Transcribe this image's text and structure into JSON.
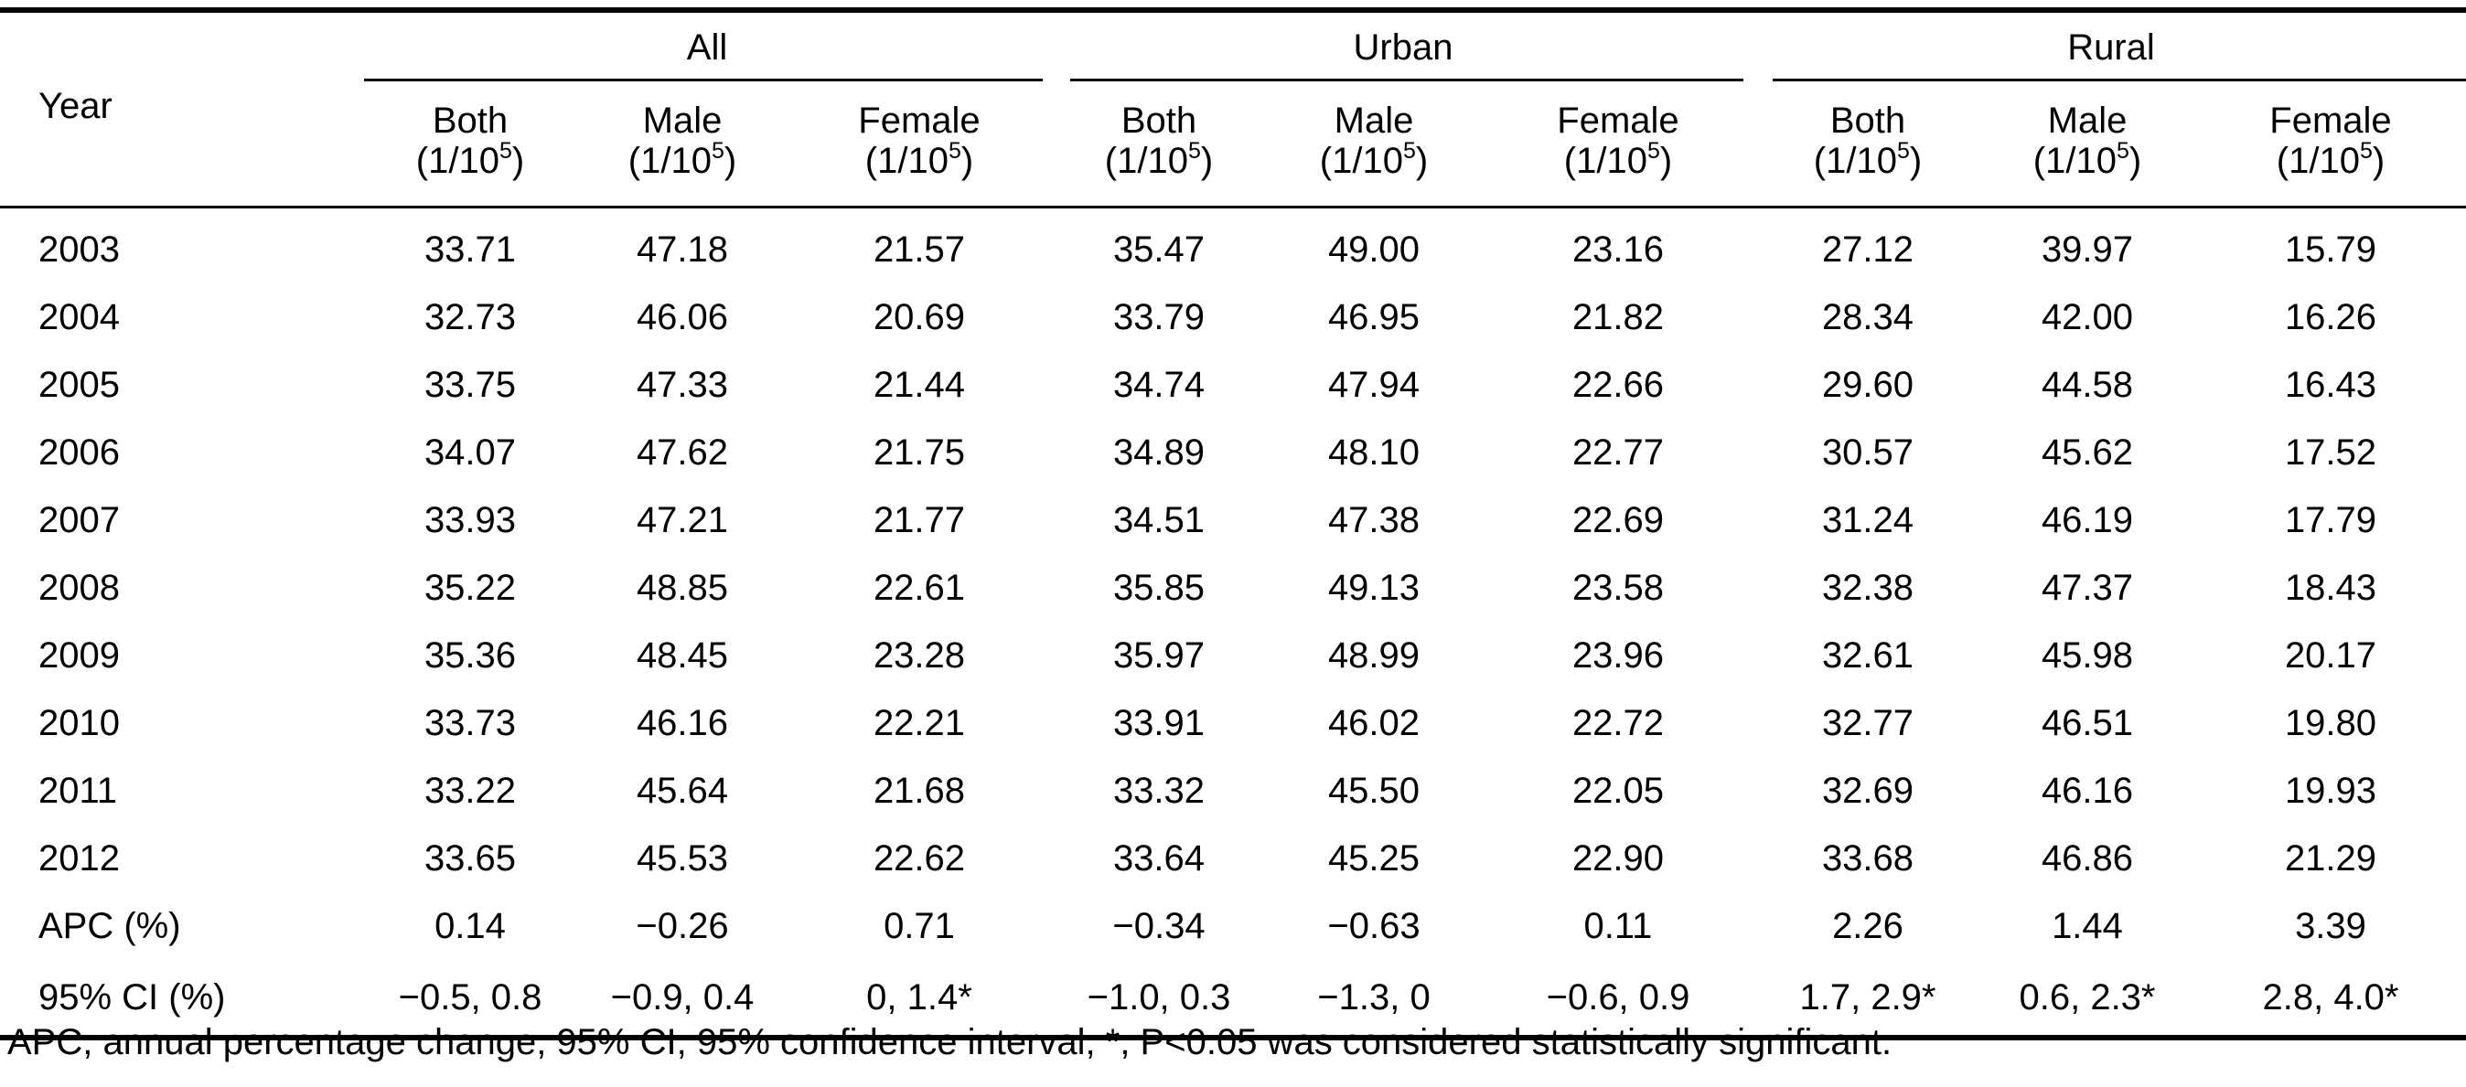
{
  "table": {
    "year_label": "Year",
    "groups": [
      "All",
      "Urban",
      "Rural"
    ],
    "subheaders": [
      {
        "label": "Both",
        "unit_base": "(1/10",
        "unit_exp": "5",
        "unit_close": ")"
      },
      {
        "label": "Male",
        "unit_base": "(1/10",
        "unit_exp": "5",
        "unit_close": ")"
      },
      {
        "label": "Female",
        "unit_base": "(1/10",
        "unit_exp": "5",
        "unit_close": ")"
      },
      {
        "label": "Both",
        "unit_base": "(1/10",
        "unit_exp": "5",
        "unit_close": ")"
      },
      {
        "label": "Male",
        "unit_base": "(1/10",
        "unit_exp": "5",
        "unit_close": ")"
      },
      {
        "label": "Female",
        "unit_base": "(1/10",
        "unit_exp": "5",
        "unit_close": ")"
      },
      {
        "label": "Both",
        "unit_base": "(1/10",
        "unit_exp": "5",
        "unit_close": ")"
      },
      {
        "label": "Male",
        "unit_base": "(1/10",
        "unit_exp": "5",
        "unit_close": ")"
      },
      {
        "label": "Female",
        "unit_base": "(1/10",
        "unit_exp": "5",
        "unit_close": ")"
      }
    ],
    "rows": [
      {
        "label": "2003",
        "cells": [
          "33.71",
          "47.18",
          "21.57",
          "35.47",
          "49.00",
          "23.16",
          "27.12",
          "39.97",
          "15.79"
        ]
      },
      {
        "label": "2004",
        "cells": [
          "32.73",
          "46.06",
          "20.69",
          "33.79",
          "46.95",
          "21.82",
          "28.34",
          "42.00",
          "16.26"
        ]
      },
      {
        "label": "2005",
        "cells": [
          "33.75",
          "47.33",
          "21.44",
          "34.74",
          "47.94",
          "22.66",
          "29.60",
          "44.58",
          "16.43"
        ]
      },
      {
        "label": "2006",
        "cells": [
          "34.07",
          "47.62",
          "21.75",
          "34.89",
          "48.10",
          "22.77",
          "30.57",
          "45.62",
          "17.52"
        ]
      },
      {
        "label": "2007",
        "cells": [
          "33.93",
          "47.21",
          "21.77",
          "34.51",
          "47.38",
          "22.69",
          "31.24",
          "46.19",
          "17.79"
        ]
      },
      {
        "label": "2008",
        "cells": [
          "35.22",
          "48.85",
          "22.61",
          "35.85",
          "49.13",
          "23.58",
          "32.38",
          "47.37",
          "18.43"
        ]
      },
      {
        "label": "2009",
        "cells": [
          "35.36",
          "48.45",
          "23.28",
          "35.97",
          "48.99",
          "23.96",
          "32.61",
          "45.98",
          "20.17"
        ]
      },
      {
        "label": "2010",
        "cells": [
          "33.73",
          "46.16",
          "22.21",
          "33.91",
          "46.02",
          "22.72",
          "32.77",
          "46.51",
          "19.80"
        ]
      },
      {
        "label": "2011",
        "cells": [
          "33.22",
          "45.64",
          "21.68",
          "33.32",
          "45.50",
          "22.05",
          "32.69",
          "46.16",
          "19.93"
        ]
      },
      {
        "label": "2012",
        "cells": [
          "33.65",
          "45.53",
          "22.62",
          "33.64",
          "45.25",
          "22.90",
          "33.68",
          "46.86",
          "21.29"
        ]
      },
      {
        "label": "APC (%)",
        "cells": [
          "0.14",
          "−0.26",
          "0.71",
          "−0.34",
          "−0.63",
          "0.11",
          "2.26",
          "1.44",
          "3.39"
        ]
      },
      {
        "label": "95% CI (%)",
        "cells": [
          "−0.5, 0.8",
          "−0.9, 0.4",
          "0, 1.4*",
          "−1.0, 0.3",
          "−1.3, 0",
          "−0.6, 0.9",
          "1.7, 2.9*",
          "0.6, 2.3*",
          "2.8, 4.0*"
        ]
      }
    ]
  },
  "footnote": "APC, annual percentage change; 95% CI, 95% confidence interval; *, P<0.05 was considered statistically significant."
}
